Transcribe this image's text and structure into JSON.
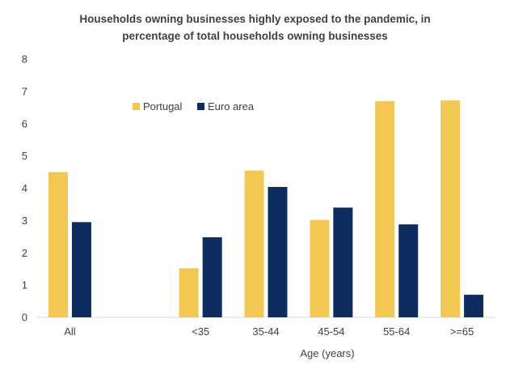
{
  "chart_data": {
    "type": "bar",
    "title_lines": [
      "Households owning businesses highly exposed to the pandemic, in",
      "percentage of total households owning businesses"
    ],
    "xlabel": "Age (years)",
    "ylabel": "",
    "ylim": [
      0,
      8
    ],
    "yticks": [
      "0",
      "1",
      "2",
      "3",
      "4",
      "5",
      "6",
      "7",
      "8"
    ],
    "categories": [
      "All",
      "",
      "<35",
      "35-44",
      "45-54",
      "55-64",
      ">=65"
    ],
    "series": [
      {
        "name": "Portugal",
        "color": "#F2C853",
        "values": [
          4.5,
          null,
          1.52,
          4.55,
          3.02,
          6.7,
          6.72
        ]
      },
      {
        "name": "Euro area",
        "color": "#0D2D5E",
        "values": [
          2.95,
          null,
          2.48,
          4.04,
          3.4,
          2.88,
          0.7
        ]
      }
    ],
    "legend": "top-left",
    "grid": false
  }
}
